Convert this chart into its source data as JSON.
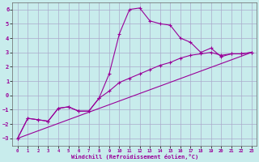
{
  "xlabel": "Windchill (Refroidissement éolien,°C)",
  "bg_color": "#c8ecec",
  "grid_color": "#aaaacc",
  "line_color": "#990099",
  "xlim": [
    -0.5,
    23.5
  ],
  "ylim": [
    -3.5,
    6.5
  ],
  "xticks": [
    0,
    1,
    2,
    3,
    4,
    5,
    6,
    7,
    8,
    9,
    10,
    11,
    12,
    13,
    14,
    15,
    16,
    17,
    18,
    19,
    20,
    21,
    22,
    23
  ],
  "yticks": [
    -3,
    -2,
    -1,
    0,
    1,
    2,
    3,
    4,
    5,
    6
  ],
  "curve1_x": [
    0,
    1,
    2,
    3,
    4,
    5,
    6,
    7,
    8,
    9,
    10,
    11,
    12,
    13,
    14,
    15,
    16,
    17,
    18,
    19,
    20,
    21,
    22,
    23
  ],
  "curve1_y": [
    -3.0,
    -1.6,
    -1.7,
    -1.8,
    -0.9,
    -0.8,
    -1.1,
    -1.1,
    -0.2,
    1.5,
    4.3,
    6.0,
    6.1,
    5.2,
    5.0,
    4.9,
    4.0,
    3.7,
    3.0,
    3.3,
    2.7,
    2.9,
    2.9,
    3.0
  ],
  "curve2_x": [
    0,
    1,
    2,
    3,
    4,
    5,
    6,
    7,
    8,
    9,
    10,
    11,
    12,
    13,
    14,
    15,
    16,
    17,
    18,
    19,
    20,
    21,
    22,
    23
  ],
  "curve2_y": [
    -3.0,
    -1.6,
    -1.7,
    -1.8,
    -0.9,
    -0.8,
    -1.1,
    -1.1,
    -0.2,
    0.3,
    0.9,
    1.2,
    1.5,
    1.8,
    2.1,
    2.3,
    2.6,
    2.8,
    2.9,
    3.0,
    2.8,
    2.9,
    2.9,
    3.0
  ],
  "line3_x": [
    0,
    23
  ],
  "line3_y": [
    -3.0,
    3.0
  ]
}
